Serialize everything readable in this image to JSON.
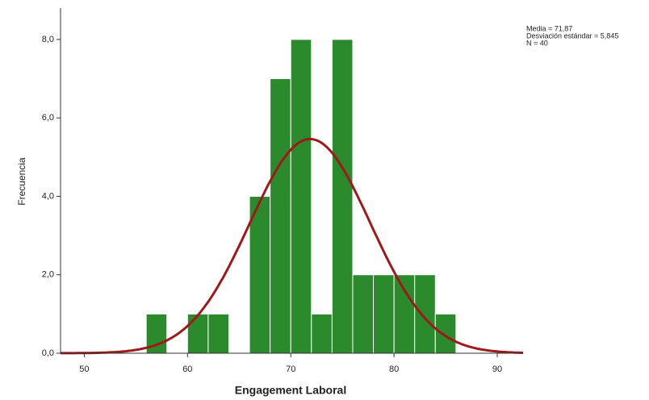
{
  "chart_data": {
    "type": "histogram",
    "x_label": "Engagement Laboral",
    "y_label": "Frecuencia",
    "bins": [
      56,
      58,
      60,
      62,
      64,
      66,
      68,
      70,
      72,
      74,
      76,
      78,
      80,
      82,
      84,
      86
    ],
    "values": [
      1,
      0,
      1,
      1,
      0,
      4,
      7,
      8,
      1,
      8,
      2,
      2,
      2,
      2,
      1
    ],
    "color": "#2b8a2b",
    "curve": {
      "mean": 71.87,
      "sd": 5.845,
      "n": 40,
      "color": "#9e1a1a"
    },
    "annotations": [
      "Media = 71,87",
      "Desviación estándar = 5,845",
      "N = 40"
    ],
    "xlim": [
      47.7,
      92.5
    ],
    "xticks": [
      50,
      60,
      70,
      80,
      90
    ],
    "ylim": [
      0,
      8.8
    ],
    "yticks": [
      {
        "value": 0,
        "label": "0,0"
      },
      {
        "value": 2,
        "label": "2,0"
      },
      {
        "value": 4,
        "label": "4,0"
      },
      {
        "value": 6,
        "label": "6,0"
      },
      {
        "value": 8,
        "label": "8,0"
      }
    ],
    "grid": false
  }
}
